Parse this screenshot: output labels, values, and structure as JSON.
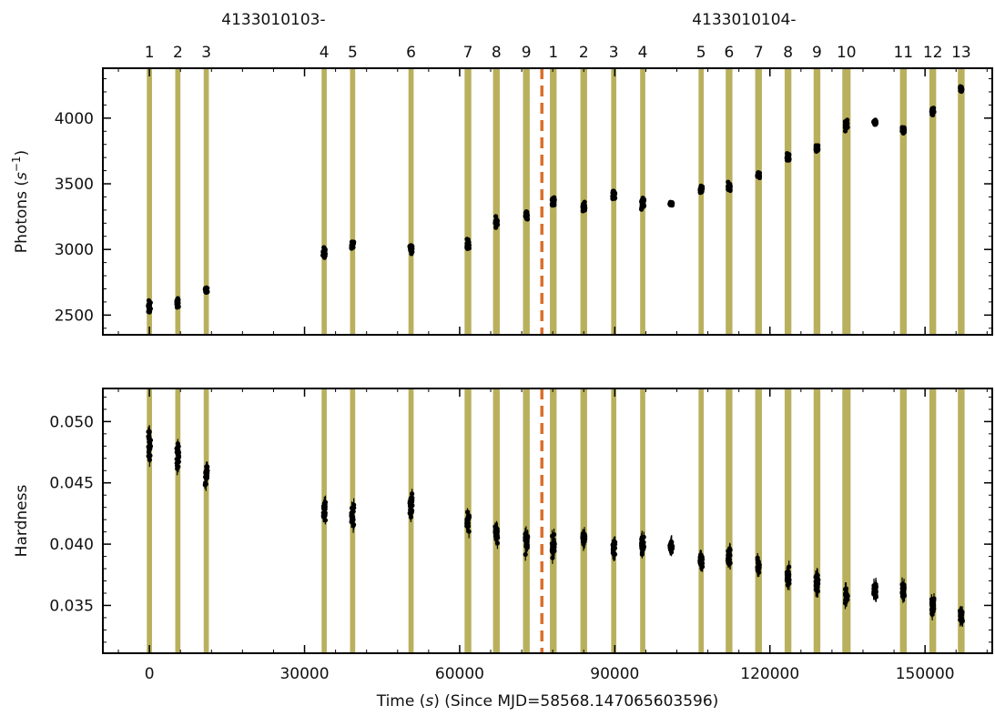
{
  "chart_data": [
    {
      "type": "scatter",
      "panel": "top",
      "ylabel_main": "Photons (",
      "ylabel_sup": "−1",
      "ylabel_unit": "s",
      "ylabel_close": ")",
      "ylim": [
        2350,
        4380
      ],
      "yticks": [
        2500,
        3000,
        3500,
        4000
      ],
      "ytick_labels": [
        "2500",
        "3000",
        "3500",
        "4000"
      ],
      "series": [
        {
          "x": [
            0,
            5500,
            11000,
            33800,
            39300,
            50600,
            61600,
            67100,
            72900,
            78100,
            84000,
            89800,
            95400,
            100900,
            106700,
            112100,
            117800,
            123500,
            129100,
            134800,
            140300,
            145800,
            151500,
            157000
          ],
          "y": [
            2560,
            2600,
            2690,
            2975,
            3040,
            3010,
            3040,
            3210,
            3270,
            3360,
            3320,
            3420,
            3350,
            3350,
            3460,
            3480,
            3570,
            3700,
            3770,
            3950,
            3970,
            3910,
            4050,
            4220
          ],
          "spread": [
            70,
            45,
            30,
            55,
            55,
            50,
            60,
            60,
            50,
            55,
            55,
            45,
            55,
            25,
            50,
            45,
            40,
            40,
            35,
            60,
            30,
            35,
            45,
            50
          ]
        }
      ]
    },
    {
      "type": "scatter",
      "panel": "bottom",
      "ylabel": "Hardness",
      "xlabel": "Time (s) (Since MJD=58568.147065603596)",
      "xlabel_parts": [
        "Time (",
        "s",
        ") (Since MJD=58568.147065603596)"
      ],
      "xlim": [
        -9000,
        163000
      ],
      "xticks": [
        0,
        30000,
        60000,
        90000,
        120000,
        150000
      ],
      "xtick_labels": [
        "0",
        "30000",
        "60000",
        "90000",
        "120000",
        "150000"
      ],
      "ylim": [
        0.0311,
        0.0527
      ],
      "yticks": [
        0.035,
        0.04,
        0.045,
        0.05
      ],
      "ytick_labels": [
        "0.035",
        "0.040",
        "0.045",
        "0.050"
      ],
      "series": [
        {
          "x": [
            0,
            5500,
            11000,
            33800,
            39300,
            50600,
            61600,
            67100,
            72900,
            78100,
            84000,
            89800,
            95400,
            100900,
            106700,
            112100,
            117800,
            123500,
            129100,
            134800,
            140300,
            145800,
            151500,
            157000
          ],
          "y": [
            0.0482,
            0.0472,
            0.0458,
            0.0428,
            0.0423,
            0.0433,
            0.0419,
            0.041,
            0.0402,
            0.0398,
            0.0404,
            0.0398,
            0.04,
            0.0398,
            0.0387,
            0.039,
            0.0382,
            0.0374,
            0.0368,
            0.0357,
            0.0363,
            0.0361,
            0.035,
            0.0342
          ],
          "spread": [
            0.0015,
            0.0015,
            0.0012,
            0.0012,
            0.0013,
            0.0012,
            0.0011,
            0.0011,
            0.0011,
            0.0012,
            0.001,
            0.0009,
            0.001,
            0.0007,
            0.001,
            0.0012,
            0.001,
            0.001,
            0.0009,
            0.001,
            0.0008,
            0.001,
            0.001,
            0.001
          ]
        }
      ]
    }
  ],
  "observations": {
    "group_labels": [
      "4133010103-",
      "4133010104-"
    ],
    "group_label_x": [
      24000,
      115000
    ],
    "segment_labels": [
      "1",
      "2",
      "3",
      "4",
      "5",
      "6",
      "7",
      "8",
      "9",
      "1",
      "2",
      "3",
      "4",
      "5",
      "6",
      "7",
      "8",
      "9",
      "10",
      "11",
      "12",
      "13"
    ],
    "segment_x": [
      0,
      5500,
      11000,
      33800,
      39300,
      50600,
      61600,
      67100,
      72900,
      78100,
      84000,
      89800,
      95400,
      106700,
      112100,
      117800,
      123500,
      129100,
      134800,
      145800,
      151500,
      157000
    ],
    "band_width": [
      1000,
      1000,
      1000,
      1000,
      1000,
      1000,
      1300,
      1300,
      1300,
      1300,
      1300,
      1000,
      1000,
      1000,
      1300,
      1300,
      1300,
      1300,
      1600,
      1300,
      1300,
      1300
    ],
    "divider_x": 75900,
    "band_color": "#b8b05d",
    "divider_color": "#d9702c",
    "marker_color": "#000000"
  }
}
